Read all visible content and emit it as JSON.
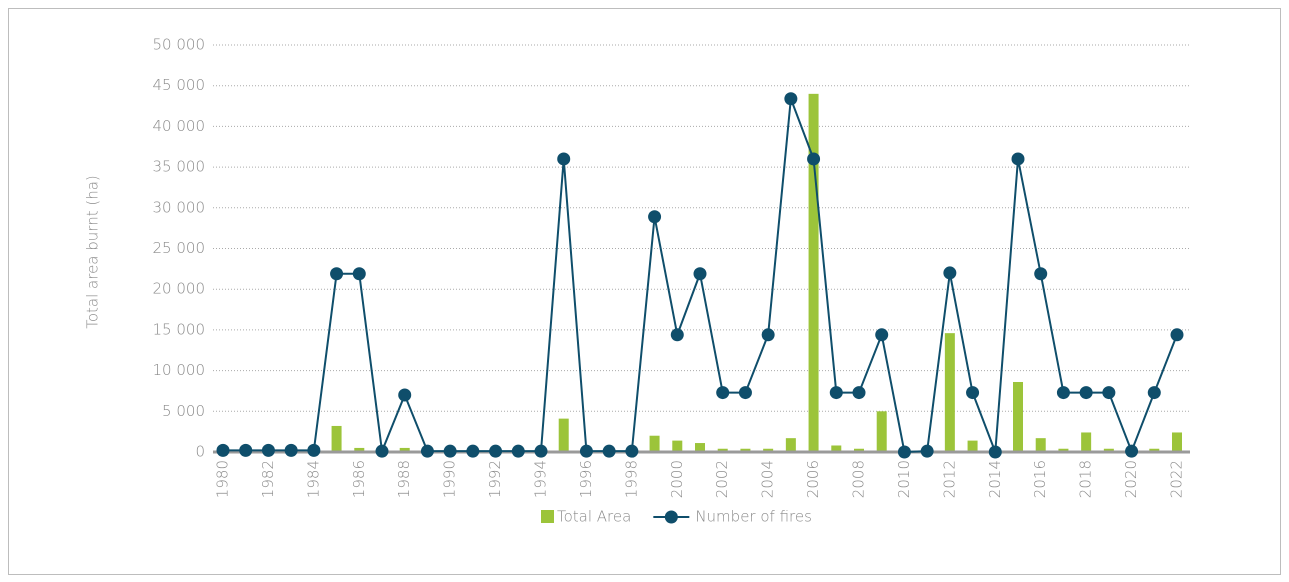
{
  "chart_data": {
    "type": "bar_line",
    "y_label": "Total area burnt (ha)",
    "categories": [
      "1980",
      null,
      "1982",
      null,
      "1984",
      null,
      "1986",
      null,
      "1988",
      null,
      "1990",
      null,
      "1992",
      null,
      "1994",
      null,
      "1996",
      null,
      "1998",
      null,
      "2000",
      null,
      "2002",
      null,
      "2004",
      null,
      "2006",
      null,
      "2008",
      null,
      "2010",
      null,
      "2012",
      null,
      "2014",
      null,
      "2016",
      null,
      "2018",
      null,
      "2020",
      null,
      "2022"
    ],
    "series": [
      {
        "name": "Total Area",
        "type": "bar",
        "color": "#9cc43a",
        "values": [
          0,
          0,
          0,
          0,
          0,
          3200,
          500,
          0,
          500,
          0,
          0,
          0,
          0,
          0,
          0,
          4100,
          0,
          0,
          0,
          2000,
          1400,
          1100,
          400,
          400,
          400,
          1700,
          44000,
          800,
          400,
          5000,
          0,
          0,
          14600,
          1400,
          0,
          8600,
          1700,
          400,
          2400,
          400,
          0,
          400,
          2400
        ]
      },
      {
        "name": "Number of fires",
        "type": "line",
        "color": "#0f4e6b",
        "values": [
          200,
          200,
          200,
          200,
          200,
          21900,
          21900,
          100,
          7000,
          100,
          100,
          100,
          100,
          100,
          100,
          36000,
          100,
          100,
          100,
          28900,
          14400,
          21900,
          7300,
          7300,
          14400,
          43400,
          36000,
          7300,
          7300,
          14400,
          0,
          100,
          22000,
          7300,
          0,
          36000,
          21900,
          7300,
          7300,
          7300,
          100,
          7300,
          14400
        ]
      }
    ],
    "ylim": [
      0,
      50000
    ],
    "yticks": [
      0,
      {
        "value": 5000,
        "label": "5 000"
      },
      {
        "value": 10000,
        "label": "10 000"
      },
      {
        "value": 15000,
        "label": "15 000"
      },
      {
        "value": 20000,
        "label": "20 000"
      },
      {
        "value": 25000,
        "label": "25 000"
      },
      {
        "value": 30000,
        "label": "30 000"
      },
      {
        "value": 35000,
        "label": "35 000"
      },
      {
        "value": 40000,
        "label": "40 000"
      },
      {
        "value": 45000,
        "label": "45 000"
      },
      {
        "value": 50000,
        "label": "50 000"
      }
    ],
    "grid": true
  }
}
